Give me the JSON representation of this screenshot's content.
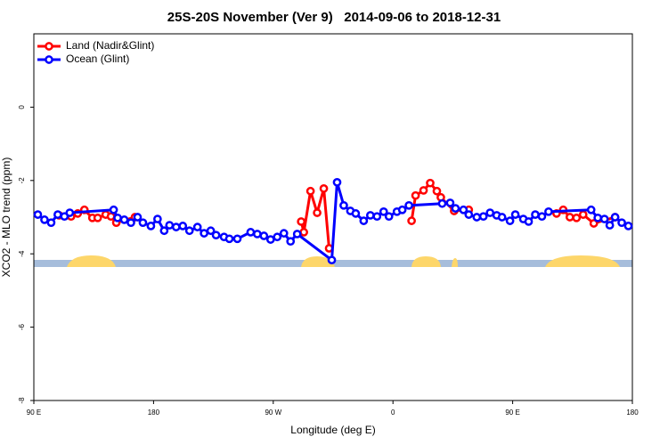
{
  "chart_data": {
    "type": "line",
    "title": "25S-20S November (Ver 9)   2014-09-06 to 2018-12-31",
    "xlabel": "Longitude (deg E)",
    "ylabel": "XCO2 - MLO trend (ppm)",
    "xlim": [
      90,
      540
    ],
    "xticks": [
      {
        "value": 90,
        "label": "90 E"
      },
      180,
      {
        "value": 270,
        "label": "90 W"
      },
      {
        "value": 360,
        "label": "0"
      },
      {
        "value": 450,
        "label": "90 E"
      },
      {
        "value": 540,
        "label": "180"
      }
    ],
    "ylim": [
      -8,
      2
    ],
    "yticks": [
      -8,
      -6,
      -4,
      -2,
      0
    ],
    "legend": "top-left",
    "series": [
      {
        "name": "Land (Nadir&Glint)",
        "color": "#ff0000",
        "x": [
          109,
          118,
          123,
          128,
          134,
          138,
          144,
          148,
          152,
          166,
          null,
          291,
          293,
          298,
          303,
          308,
          312,
          null,
          374,
          377,
          383,
          388,
          393,
          396,
          406,
          417,
          null,
          483,
          488,
          493,
          498,
          503,
          511,
          527
        ],
        "values": [
          -2.95,
          -2.98,
          -2.9,
          -2.8,
          -3.02,
          -3.02,
          -2.93,
          -2.98,
          -3.15,
          -3.0,
          null,
          -3.12,
          -3.41,
          -2.29,
          -2.88,
          -2.22,
          -3.85,
          null,
          -3.1,
          -2.41,
          -2.27,
          -2.07,
          -2.29,
          -2.46,
          -2.83,
          -2.8,
          null,
          -2.9,
          -2.8,
          -3.0,
          -3.02,
          -2.93,
          -3.17,
          -3.0
        ]
      },
      {
        "name": "Ocean (Glint)",
        "color": "#0000ff",
        "x": [
          93,
          98,
          103,
          108,
          113,
          117,
          150,
          153,
          158,
          163,
          168,
          172,
          178,
          183,
          188,
          192,
          197,
          202,
          207,
          213,
          218,
          223,
          227,
          233,
          237,
          243,
          253,
          258,
          263,
          268,
          273,
          278,
          283,
          288,
          314,
          318,
          323,
          328,
          332,
          338,
          343,
          348,
          353,
          357,
          363,
          367,
          372,
          397,
          403,
          407,
          413,
          417,
          423,
          428,
          433,
          438,
          442,
          448,
          452,
          458,
          462,
          467,
          472,
          477,
          509,
          514,
          519,
          523,
          527,
          532,
          537
        ],
        "values": [
          -2.93,
          -3.07,
          -3.15,
          -2.93,
          -2.98,
          -2.88,
          -2.8,
          -3.02,
          -3.07,
          -3.15,
          -3.0,
          -3.15,
          -3.24,
          -3.05,
          -3.37,
          -3.22,
          -3.27,
          -3.24,
          -3.37,
          -3.27,
          -3.44,
          -3.37,
          -3.49,
          -3.54,
          -3.59,
          -3.59,
          -3.41,
          -3.46,
          -3.51,
          -3.61,
          -3.54,
          -3.44,
          -3.66,
          -3.46,
          -4.17,
          -2.05,
          -2.68,
          -2.83,
          -2.9,
          -3.1,
          -2.95,
          -2.98,
          -2.85,
          -2.98,
          -2.85,
          -2.8,
          -2.68,
          -2.63,
          -2.61,
          -2.76,
          -2.8,
          -2.93,
          -3.0,
          -2.98,
          -2.88,
          -2.95,
          -3.0,
          -3.1,
          -2.93,
          -3.05,
          -3.12,
          -2.93,
          -2.98,
          -2.85,
          -2.8,
          -3.02,
          -3.05,
          -3.22,
          -3.0,
          -3.15,
          -3.24
        ]
      }
    ]
  }
}
